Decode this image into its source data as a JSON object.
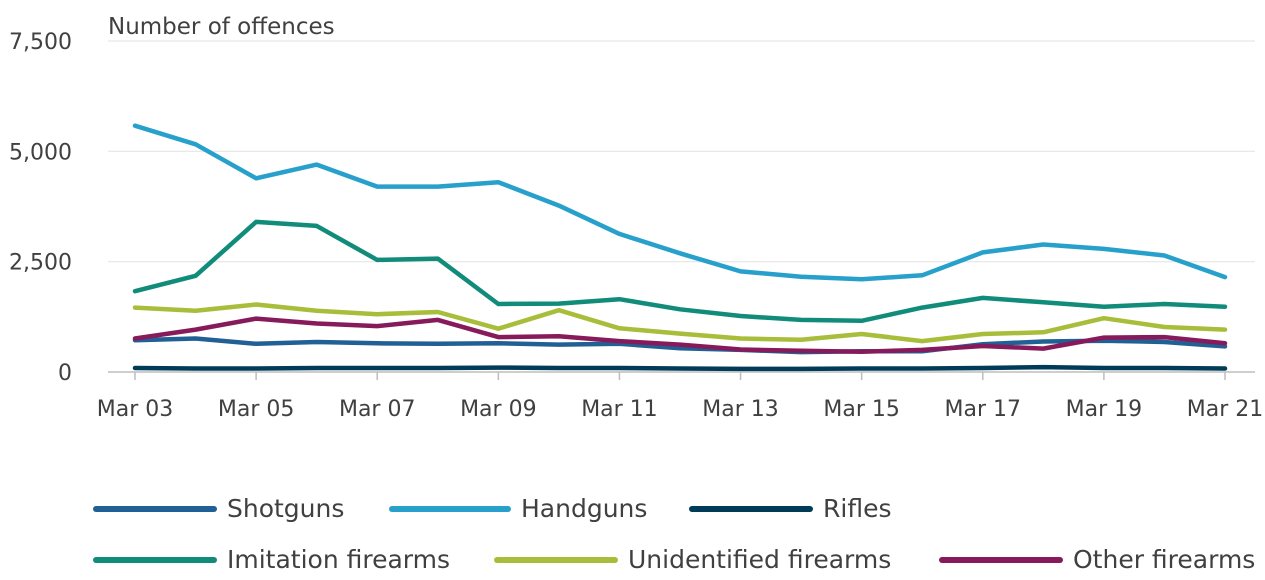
{
  "chart_data": {
    "type": "line",
    "title": "",
    "ylabel": "Number of offences",
    "xlabel": "",
    "ylim": [
      0,
      7500
    ],
    "y_ticks": [
      0,
      2500,
      5000,
      7500
    ],
    "y_tick_labels": [
      "0",
      "2,500",
      "5,000",
      "7,500"
    ],
    "x": [
      "Mar 03",
      "Mar 04",
      "Mar 05",
      "Mar 06",
      "Mar 07",
      "Mar 08",
      "Mar 09",
      "Mar 10",
      "Mar 11",
      "Mar 12",
      "Mar 13",
      "Mar 14",
      "Mar 15",
      "Mar 16",
      "Mar 17",
      "Mar 18",
      "Mar 19",
      "Mar 20",
      "Mar 21"
    ],
    "x_tick_labels": [
      "Mar 03",
      "Mar 05",
      "Mar 07",
      "Mar 09",
      "Mar 11",
      "Mar 13",
      "Mar 15",
      "Mar 17",
      "Mar 19",
      "Mar 21"
    ],
    "grid": true,
    "legend_position": "bottom",
    "series": [
      {
        "name": "Shotguns",
        "color": "#206095",
        "values": [
          720,
          760,
          640,
          680,
          650,
          640,
          650,
          620,
          640,
          540,
          500,
          450,
          470,
          470,
          630,
          690,
          710,
          680,
          580
        ]
      },
      {
        "name": "Handguns",
        "color": "#27a0cc",
        "values": [
          5580,
          5160,
          4390,
          4700,
          4200,
          4200,
          4300,
          3770,
          3130,
          2690,
          2280,
          2160,
          2100,
          2190,
          2710,
          2890,
          2790,
          2640,
          2150
        ]
      },
      {
        "name": "Rifles",
        "color": "#003c57",
        "values": [
          90,
          80,
          80,
          90,
          90,
          90,
          100,
          90,
          90,
          80,
          70,
          70,
          80,
          80,
          90,
          110,
          90,
          90,
          80
        ]
      },
      {
        "name": "Imitation firearms",
        "color": "#118c7b",
        "values": [
          1830,
          2180,
          3400,
          3310,
          2540,
          2570,
          1540,
          1550,
          1650,
          1420,
          1270,
          1180,
          1160,
          1460,
          1680,
          1580,
          1480,
          1540,
          1480
        ]
      },
      {
        "name": "Unidentified firearms",
        "color": "#a8bd3a",
        "values": [
          1460,
          1390,
          1530,
          1390,
          1310,
          1360,
          980,
          1400,
          990,
          870,
          760,
          730,
          860,
          700,
          860,
          900,
          1220,
          1020,
          960
        ]
      },
      {
        "name": "Other firearms",
        "color": "#871a5b",
        "values": [
          760,
          960,
          1210,
          1100,
          1040,
          1180,
          790,
          810,
          700,
          620,
          510,
          480,
          460,
          500,
          590,
          530,
          780,
          790,
          650
        ]
      }
    ]
  }
}
